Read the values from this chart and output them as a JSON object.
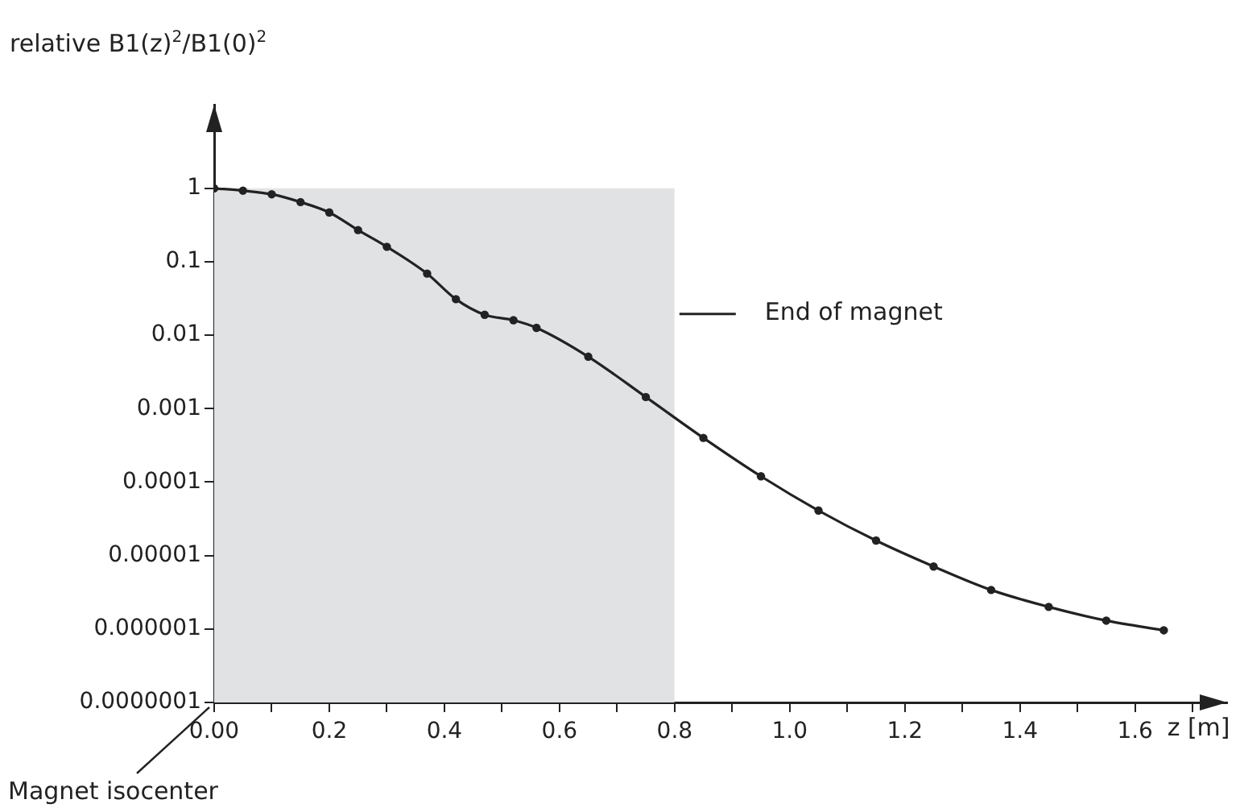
{
  "chart_data": {
    "type": "line",
    "ylabel": "relative B1(z)$^{2}$/B1(0)$^{2}$",
    "xlabel": "z [m]",
    "x": [
      0,
      0.05,
      0.1,
      0.15,
      0.2,
      0.25,
      0.3,
      0.37,
      0.42,
      0.47,
      0.52,
      0.56,
      0.65,
      0.75,
      0.85,
      0.95,
      1.05,
      1.15,
      1.25,
      1.35,
      1.45,
      1.55,
      1.65
    ],
    "series": [
      {
        "type": "area",
        "x": [
          0,
          0.8
        ],
        "color": "#e1e2e4",
        "marker": "none",
        "values": [
          1,
          1
        ]
      },
      {
        "color": "#222222",
        "values": [
          1,
          0.93,
          0.83,
          0.65,
          0.47,
          0.27,
          0.16,
          0.069,
          0.031,
          0.019,
          0.016,
          0.0126,
          0.0051,
          0.00144,
          0.0004,
          0.00012,
          4.1e-05,
          1.6e-05,
          7.1e-06,
          3.4e-06,
          2e-06,
          1.3e-06,
          9.6e-07
        ]
      }
    ],
    "log": "y",
    "marker": "circle",
    "line_style": "solid",
    "xlim": [
      0,
      1.76
    ],
    "xticks": [
      {
        "value": 0,
        "label": "0.00"
      },
      {
        "value": 0.1,
        "label": null
      },
      {
        "value": 0.2,
        "label": "0.2"
      },
      {
        "value": 0.3,
        "label": null
      },
      {
        "value": 0.4,
        "label": "0.4"
      },
      {
        "value": 0.5,
        "label": null
      },
      {
        "value": 0.6,
        "label": "0.6"
      },
      {
        "value": 0.7,
        "label": null
      },
      {
        "value": 0.8,
        "label": "0.8"
      },
      {
        "value": 0.9,
        "label": null
      },
      {
        "value": 1,
        "label": "1.0"
      },
      {
        "value": 1.1,
        "label": null
      },
      {
        "value": 1.2,
        "label": "1.2"
      },
      {
        "value": 1.3,
        "label": null
      },
      {
        "value": 1.4,
        "label": "1.4"
      },
      {
        "value": 1.5,
        "label": null
      },
      {
        "value": 1.6,
        "label": "1.6"
      },
      {
        "value": 1.7,
        "label": null
      }
    ],
    "ylim": [
      1e-07,
      13.76
    ],
    "yticks": [
      {
        "value": 1e-07,
        "label": "0.0000001"
      },
      {
        "value": 1e-06,
        "label": "0.000001"
      },
      {
        "value": 1e-05,
        "label": "0.00001"
      },
      {
        "value": 0.0001,
        "label": "0.0001"
      },
      {
        "value": 0.001,
        "label": "0.001"
      },
      {
        "value": 0.01,
        "label": "0.01"
      },
      {
        "value": 0.1,
        "label": "0.1"
      },
      {
        "value": 1,
        "label": "1"
      }
    ],
    "annotations": [
      "End of magnet",
      {
        "text": "Magnet isocenter",
        "x": 0,
        "y": 1e-07
      }
    ],
    "legend": false
  }
}
